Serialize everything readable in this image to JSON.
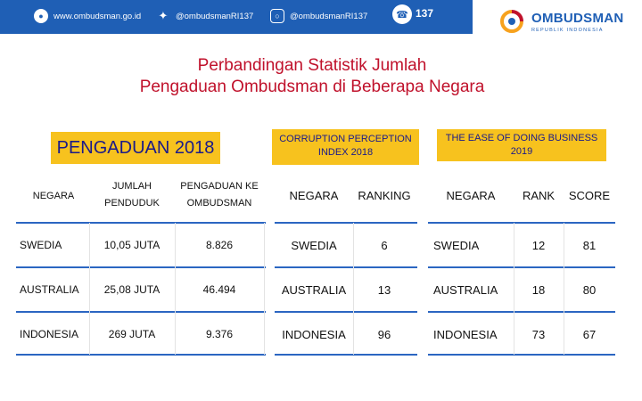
{
  "header": {
    "website": "www.ombudsman.go.id",
    "twitter": "@ombudsmanRI137",
    "instagram": "@ombudsmanRI137",
    "hotline": "137"
  },
  "logo": {
    "title": "OMBUDSMAN",
    "subtitle": "REPUBLIK INDONESIA"
  },
  "title": {
    "line1": "Perbandingan Statistik Jumlah",
    "line2": "Pengaduan Ombudsman di Beberapa Negara"
  },
  "sections": {
    "pengaduan": "PENGADUAN 2018",
    "cpi": "CORRUPTION PERCEPTION INDEX 2018",
    "eodb": "THE EASE OF DOING BUSINESS 2019"
  },
  "pengaduan_table": {
    "headers": [
      "NEGARA",
      "JUMLAH PENDUDUK",
      "PENGADUAN KE OMBUDSMAN"
    ],
    "rows": [
      [
        "SWEDIA",
        "10,05 JUTA",
        "8.826"
      ],
      [
        "AUSTRALIA",
        "25,08 JUTA",
        "46.494"
      ],
      [
        "INDONESIA",
        "269 JUTA",
        "9.376"
      ]
    ]
  },
  "cpi_table": {
    "headers": [
      "NEGARA",
      "RANKING"
    ],
    "rows": [
      [
        "SWEDIA",
        "6"
      ],
      [
        "AUSTRALIA",
        "13"
      ],
      [
        "INDONESIA",
        "96"
      ]
    ]
  },
  "eodb_table": {
    "headers": [
      "NEGARA",
      "RANK",
      "SCORE"
    ],
    "rows": [
      [
        "SWEDIA",
        "12",
        "81"
      ],
      [
        "AUSTRALIA",
        "18",
        "80"
      ],
      [
        "INDONESIA",
        "73",
        "67"
      ]
    ]
  },
  "colors": {
    "brand_blue": "#1f5fb5",
    "title_red": "#c0112b",
    "badge_yellow": "#f7c21e"
  }
}
